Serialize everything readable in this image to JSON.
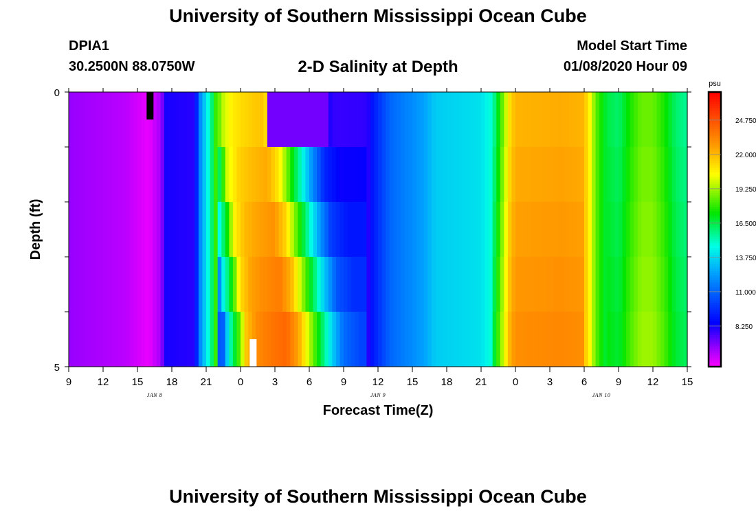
{
  "header": {
    "title": "University of Southern Mississippi Ocean Cube",
    "station_id": "DPIA1",
    "coords": "30.2500N 88.0750W",
    "model_start_label": "Model Start Time",
    "model_start_value": "01/08/2020 Hour 09"
  },
  "footer": {
    "title": "University of Southern Mississippi Ocean Cube"
  },
  "chart_data": {
    "type": "heatmap",
    "title": "2-D Salinity at Depth",
    "xlabel": "Forecast Time(Z)",
    "ylabel": "Depth (ft)",
    "x_tick_labels": [
      "9",
      "12",
      "15",
      "18",
      "21",
      "0",
      "3",
      "6",
      "9",
      "12",
      "15",
      "18",
      "21",
      "0",
      "3",
      "6",
      "9",
      "12",
      "15"
    ],
    "x_hours_start": 0,
    "x_hours_end": 54,
    "x_tick_step_hours": 3,
    "date_labels": [
      {
        "label": "JAN 8",
        "hour": 7.5
      },
      {
        "label": "JAN 9",
        "hour": 27.0
      },
      {
        "label": "JAN 10",
        "hour": 46.5
      }
    ],
    "y_tick_labels": [
      "0",
      "5"
    ],
    "ylim": [
      0,
      5
    ],
    "depth_layers": 5,
    "colorbar": {
      "unit": "psu",
      "vmin": 5.0,
      "vmax": 27.0,
      "tick_values": [
        8.25,
        11.0,
        13.75,
        16.5,
        19.25,
        22.0,
        24.75
      ],
      "tick_labels": [
        "8.250",
        "11.000",
        "13.750",
        "16.500",
        "19.250",
        "22.000",
        "24.750"
      ]
    },
    "base_profile": [
      [
        0,
        6.5
      ],
      [
        5,
        6.0
      ],
      [
        7,
        5.3
      ],
      [
        8,
        6.3
      ],
      [
        8.5,
        8.2
      ],
      [
        11,
        8.0
      ],
      [
        11.5,
        12.0
      ],
      [
        12,
        14.0
      ],
      [
        12.5,
        16.0
      ],
      [
        13,
        19.0
      ],
      [
        14,
        20.5
      ],
      [
        15,
        21.0
      ],
      [
        16.5,
        21.5
      ],
      [
        17.5,
        20.0
      ],
      [
        18.5,
        17.0
      ],
      [
        19.5,
        14.0
      ],
      [
        20.5,
        11.0
      ],
      [
        21.5,
        8.5
      ],
      [
        23,
        7.5
      ],
      [
        26,
        7.6
      ],
      [
        26.5,
        9.0
      ],
      [
        28,
        11.0
      ],
      [
        31,
        12.5
      ],
      [
        32,
        13.5
      ],
      [
        36,
        14.0
      ],
      [
        37,
        15.0
      ],
      [
        37.5,
        17.0
      ],
      [
        38,
        19.0
      ],
      [
        38.5,
        21.0
      ],
      [
        39,
        22.0
      ],
      [
        43,
        22.2
      ],
      [
        45,
        22.0
      ],
      [
        45.5,
        20.5
      ],
      [
        46,
        18.5
      ],
      [
        47,
        16.5
      ],
      [
        48,
        16.0
      ],
      [
        49,
        17.5
      ],
      [
        50,
        18.5
      ],
      [
        51,
        18.5
      ],
      [
        52,
        17.5
      ],
      [
        53,
        16.0
      ],
      [
        54,
        15.5
      ]
    ],
    "surface_patch": {
      "hour_start": 17.5,
      "hour_end": 22.5,
      "value": 7.0
    },
    "missing_cells": [
      {
        "hour_start": 6.8,
        "hour_end": 7.4,
        "depth_top": 0,
        "depth_bottom": 0.5,
        "color": "#000000"
      },
      {
        "hour_start": 15.8,
        "hour_end": 16.4,
        "depth_top": 4.5,
        "depth_bottom": 5.0,
        "color": "#ffffff"
      }
    ]
  }
}
